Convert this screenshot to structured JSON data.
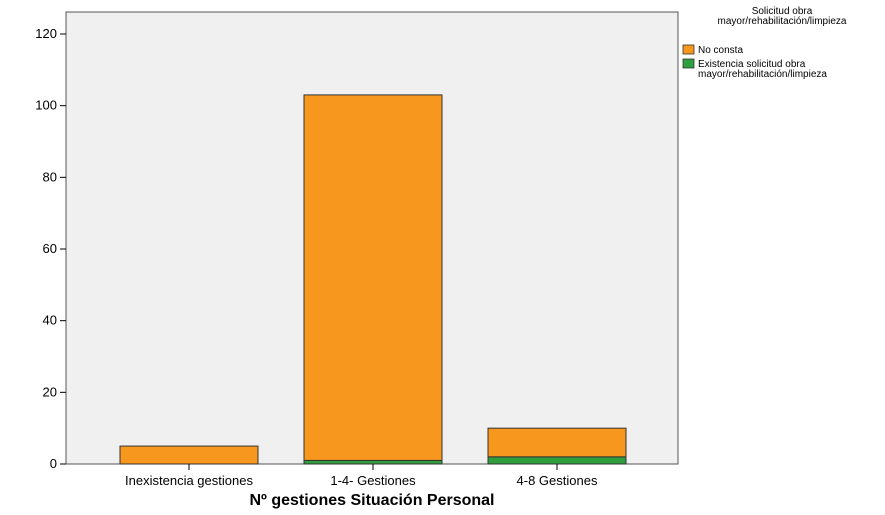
{
  "chart_data": {
    "type": "bar",
    "stacked": true,
    "categories": [
      "Inexistencia gestiones",
      "1-4- Gestiones",
      "4-8 Gestiones"
    ],
    "series": [
      {
        "name": "Existencia solicitud obra mayor/rehabilitación/limpieza",
        "color": "#2e9e3e",
        "values": [
          0,
          1,
          2
        ]
      },
      {
        "name": "No consta",
        "color": "#f7971d",
        "values": [
          5,
          102,
          8
        ]
      }
    ],
    "xlabel": "Nº gestiones Situación Personal",
    "ylabel": "",
    "ylim": [
      0,
      125
    ],
    "yticks": [
      0,
      20,
      40,
      60,
      80,
      100,
      120
    ],
    "legend": {
      "title_lines": [
        "Solicitud obra",
        "mayor/rehabilitación/limpieza"
      ],
      "entries": [
        {
          "lines": [
            "No consta"
          ],
          "color": "#f7971d"
        },
        {
          "lines": [
            "Existencia solicitud obra",
            "mayor/rehabilitación/limpieza"
          ],
          "color": "#2e9e3e"
        }
      ],
      "placement": "top-right"
    },
    "plot_background": "#f0f0f0",
    "grid": false
  }
}
